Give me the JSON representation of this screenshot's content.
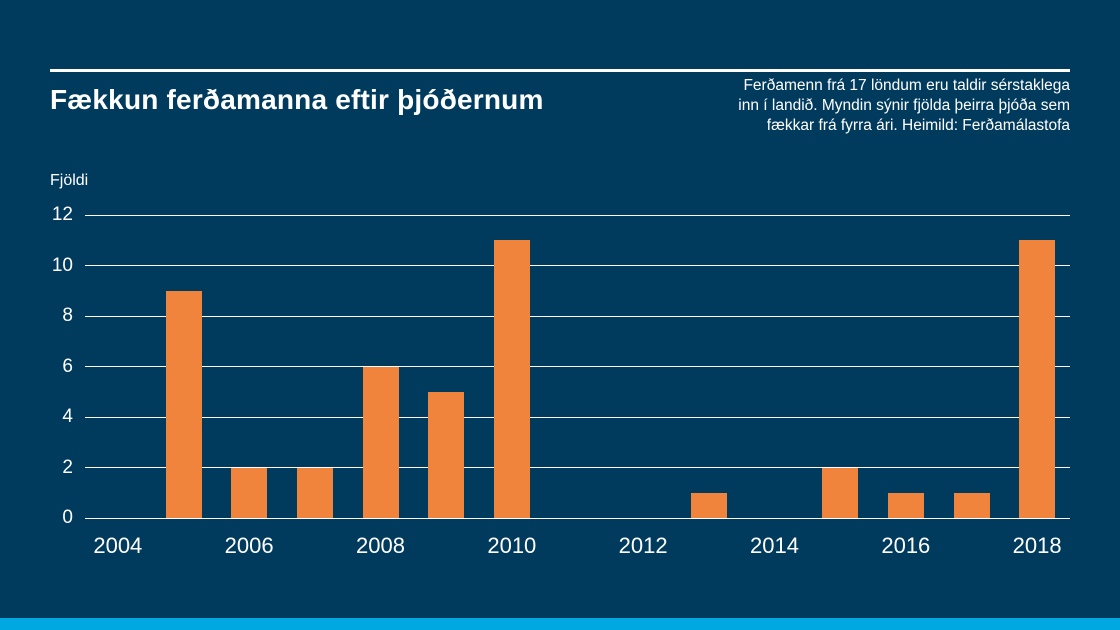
{
  "page": {
    "title": "Fækkun ferðamanna eftir þjóðernum",
    "annotation_lines": [
      "Ferðamenn frá 17 löndum eru taldir sérstaklega",
      "inn í landið. Myndin sýnir fjölda þeirra þjóða sem",
      "fækkar frá fyrra ári. Heimild: Ferðamálastofa"
    ],
    "y_axis_label": "Fjöldi"
  },
  "colors": {
    "background": "#003a5d",
    "bar": "#f0843c",
    "text": "#ffffff",
    "gridline": "#ffffff",
    "bottom_strip": "#00a8e1"
  },
  "chart_data": {
    "type": "bar",
    "title": "Fækkun ferðamanna eftir þjóðernum",
    "xlabel": "",
    "ylabel": "Fjöldi",
    "x": [
      2004,
      2005,
      2006,
      2007,
      2008,
      2009,
      2010,
      2011,
      2012,
      2013,
      2014,
      2015,
      2016,
      2017,
      2018
    ],
    "values": [
      0,
      9,
      2,
      2,
      6,
      5,
      11,
      0,
      0,
      1,
      0,
      2,
      1,
      1,
      11
    ],
    "ylim": [
      0,
      12
    ],
    "yticks": [
      0,
      2,
      4,
      6,
      8,
      10,
      12
    ],
    "xticks": [
      2004,
      2006,
      2008,
      2010,
      2012,
      2014,
      2016,
      2018
    ],
    "grid": true,
    "legend": false,
    "bar_color": "#f0843c"
  }
}
